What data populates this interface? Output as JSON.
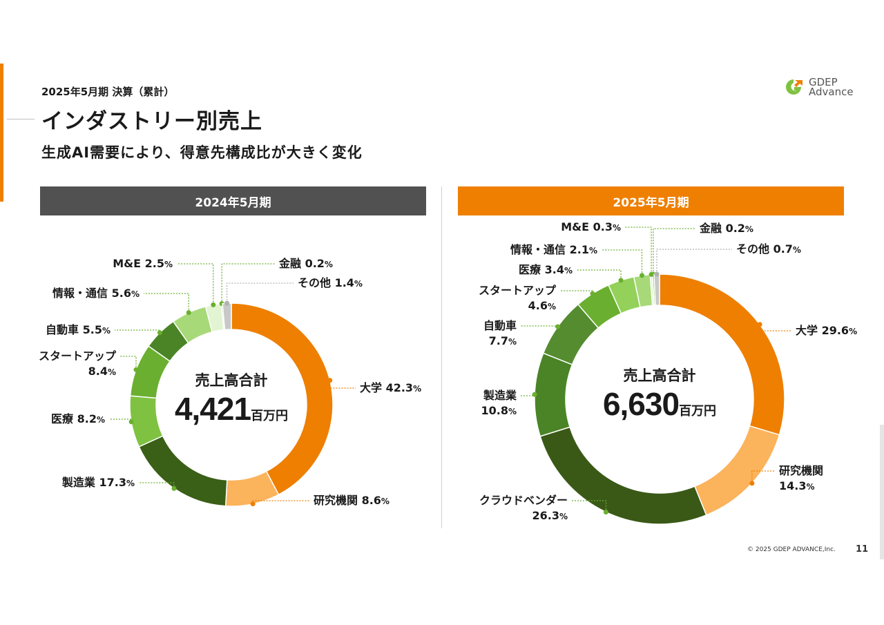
{
  "header": {
    "subtitle": "2025年5月期 決算（累計）",
    "title": "インダストリー別売上",
    "lead": "生成AI需要により、得意先構成比が大きく変化"
  },
  "logo": {
    "line1": "GDEP",
    "line2": "Advance"
  },
  "footer": {
    "copyright": "© 2025 GDEP ADVANCE,Inc.",
    "page": "11"
  },
  "chart_data": [
    {
      "type": "pie",
      "title": "2024年5月期",
      "center_caption": "売上高合計",
      "center_value": "4,421",
      "center_unit": "百万円",
      "categories": [
        "大学",
        "研究機関",
        "製造業",
        "医療",
        "スタートアップ",
        "自動車",
        "情報・通信",
        "M&E",
        "金融",
        "その他"
      ],
      "values": [
        42.3,
        8.6,
        17.3,
        8.2,
        8.4,
        5.5,
        5.6,
        2.5,
        0.2,
        1.4
      ],
      "colors": [
        "#ee7f00",
        "#fbb35c",
        "#3a5f17",
        "#7fc241",
        "#6aaf2f",
        "#4a8426",
        "#a8d978",
        "#e2f4d2",
        "#6aaf2f",
        "#c8c8c8"
      ]
    },
    {
      "type": "pie",
      "title": "2025年5月期",
      "center_caption": "売上高合計",
      "center_value": "6,630",
      "center_unit": "百万円",
      "categories": [
        "大学",
        "研究機関",
        "クラウドベンダー",
        "製造業",
        "自動車",
        "スタートアップ",
        "医療",
        "情報・通信",
        "M&E",
        "金融",
        "その他"
      ],
      "values": [
        29.6,
        14.3,
        26.3,
        10.8,
        7.7,
        4.6,
        3.4,
        2.1,
        0.3,
        0.2,
        0.7
      ],
      "colors": [
        "#ee7f00",
        "#fbb35c",
        "#3a5917",
        "#4a8426",
        "#548c2f",
        "#6aaf2f",
        "#93d15a",
        "#a8d978",
        "#e2f4d2",
        "#6aaf2f",
        "#c8c8c8"
      ]
    }
  ]
}
